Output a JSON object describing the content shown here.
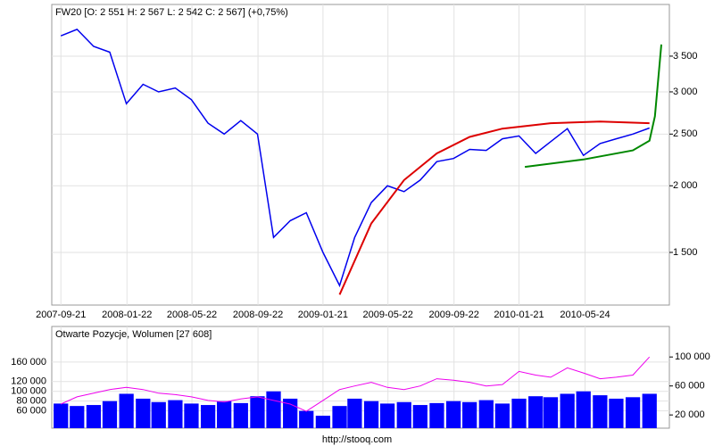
{
  "chart_data": [
    {
      "type": "line",
      "title": "FW20 [O: 2 551  H: 2 567  L: 2 542  C: 2 567] (+0,75%)",
      "log_scale": true,
      "grid": true,
      "xlim": [
        "2007-09-04",
        "2010-10-28"
      ],
      "xticks": [
        "2007-09-21",
        "2008-01-22",
        "2008-05-22",
        "2008-09-22",
        "2009-01-21",
        "2009-05-22",
        "2009-09-22",
        "2010-01-21",
        "2010-05-24"
      ],
      "ylim": [
        1195,
        4375
      ],
      "yticks": [
        {
          "value": 1500,
          "label": "1 500"
        },
        {
          "value": 2000,
          "label": "2 000"
        },
        {
          "value": 2500,
          "label": "2 500"
        },
        {
          "value": 3000,
          "label": "3 000"
        },
        {
          "value": 3500,
          "label": "3 500"
        }
      ],
      "series": [
        {
          "color": "#0000ee",
          "x": [
            "2007-09-21",
            "2007-10-21",
            "2007-11-21",
            "2007-12-21",
            "2008-01-21",
            "2008-02-21",
            "2008-03-21",
            "2008-04-21",
            "2008-05-21",
            "2008-06-21",
            "2008-07-21",
            "2008-08-21",
            "2008-09-21",
            "2008-10-21",
            "2008-11-21",
            "2008-12-21",
            "2009-01-21",
            "2009-02-21",
            "2009-03-21",
            "2009-04-21",
            "2009-05-21",
            "2009-06-21",
            "2009-07-21",
            "2009-08-21",
            "2009-09-21",
            "2009-10-21",
            "2009-11-21",
            "2009-12-21",
            "2010-01-21",
            "2010-02-21",
            "2010-03-21",
            "2010-04-21",
            "2010-05-21",
            "2010-06-21",
            "2010-07-21",
            "2010-08-21",
            "2010-09-21"
          ],
          "values": [
            3820,
            3930,
            3650,
            3560,
            2850,
            3100,
            3000,
            3050,
            2900,
            2620,
            2500,
            2650,
            2500,
            1600,
            1720,
            1780,
            1500,
            1300,
            1600,
            1860,
            2000,
            1950,
            2050,
            2220,
            2250,
            2340,
            2330,
            2450,
            2480,
            2300,
            2420,
            2560,
            2280,
            2400,
            2450,
            2500,
            2567
          ]
        },
        {
          "color": "#dd0000",
          "x": [
            "2009-02-21",
            "2009-04-21",
            "2009-06-21",
            "2009-08-21",
            "2009-10-21",
            "2009-12-21",
            "2010-03-21",
            "2010-06-21",
            "2010-09-21"
          ],
          "values": [
            1250,
            1700,
            2050,
            2300,
            2470,
            2560,
            2620,
            2640,
            2620
          ]
        },
        {
          "color": "#008800",
          "x": [
            "2010-02-01",
            "2010-05-21",
            "2010-08-21",
            "2010-09-21",
            "2010-10-01",
            "2010-10-13"
          ],
          "values": [
            2170,
            2240,
            2330,
            2430,
            2700,
            3680
          ]
        }
      ]
    },
    {
      "type": "bar",
      "title": "Otwarte Pozycje, Wolumen [27 608]",
      "grid": true,
      "xlim": [
        "2007-09-04",
        "2010-10-28"
      ],
      "ylim": [
        24600,
        232900
      ],
      "yticks": [
        {
          "value": 60000,
          "label": "60 000"
        },
        {
          "value": 80000,
          "label": "80 000"
        },
        {
          "value": 100000,
          "label": "100 000"
        },
        {
          "value": 120000,
          "label": "120 000"
        },
        {
          "value": 160000,
          "label": "160 000"
        }
      ],
      "y2lim": [
        1750,
        142100
      ],
      "y2ticks": [
        {
          "value": 20000,
          "label": "20 000"
        },
        {
          "value": 60000,
          "label": "60 000"
        },
        {
          "value": 100000,
          "label": "100 000"
        }
      ],
      "x": [
        "2007-09-21",
        "2007-10-21",
        "2007-11-21",
        "2007-12-21",
        "2008-01-21",
        "2008-02-21",
        "2008-03-21",
        "2008-04-21",
        "2008-05-21",
        "2008-06-21",
        "2008-07-21",
        "2008-08-21",
        "2008-09-21",
        "2008-10-21",
        "2008-11-21",
        "2008-12-21",
        "2009-01-21",
        "2009-02-21",
        "2009-03-21",
        "2009-04-21",
        "2009-05-21",
        "2009-06-21",
        "2009-07-21",
        "2009-08-21",
        "2009-09-21",
        "2009-10-21",
        "2009-11-21",
        "2009-12-21",
        "2010-01-21",
        "2010-02-21",
        "2010-03-21",
        "2010-04-21",
        "2010-05-21",
        "2010-06-21",
        "2010-07-21",
        "2010-08-21",
        "2010-09-21"
      ],
      "series": [
        {
          "color": "#0000ff",
          "values": [
            75000,
            70000,
            72000,
            80000,
            95000,
            85000,
            78000,
            82000,
            75000,
            72000,
            80000,
            76000,
            90000,
            100000,
            85000,
            60000,
            50000,
            70000,
            85000,
            80000,
            75000,
            78000,
            72000,
            76000,
            80000,
            78000,
            82000,
            75000,
            85000,
            90000,
            88000,
            95000,
            100000,
            92000,
            85000,
            88000,
            95000
          ]
        },
        {
          "color": "#ee00ee",
          "type": "line",
          "axis": "y2",
          "values": [
            35000,
            45000,
            50000,
            55000,
            58000,
            55000,
            50000,
            48000,
            45000,
            40000,
            38000,
            42000,
            45000,
            40000,
            35000,
            25000,
            40000,
            55000,
            60000,
            65000,
            58000,
            55000,
            60000,
            70000,
            68000,
            65000,
            60000,
            62000,
            80000,
            75000,
            72000,
            85000,
            78000,
            70000,
            72000,
            75000,
            100000
          ]
        }
      ]
    }
  ],
  "footer": "http://stooq.com"
}
